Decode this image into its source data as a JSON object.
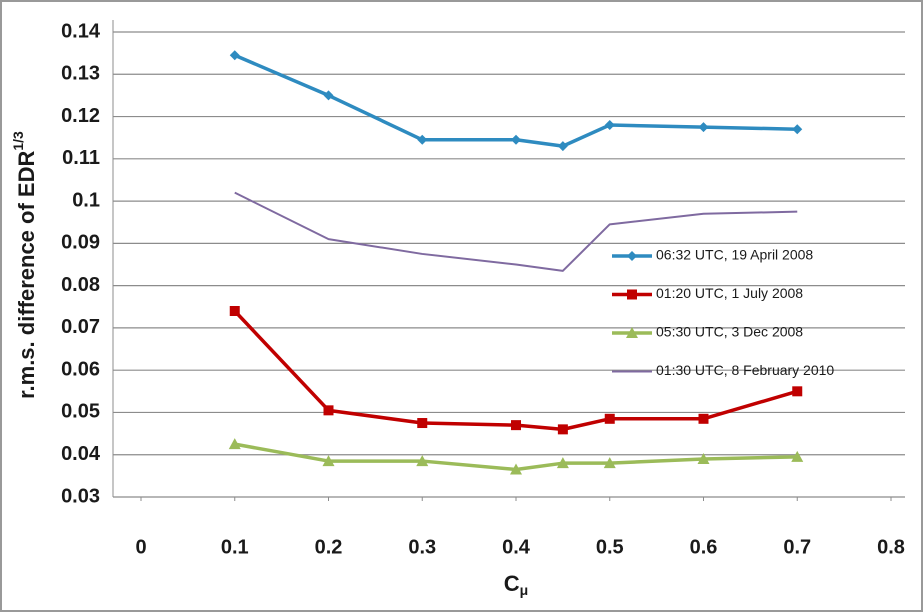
{
  "chart_data": {
    "type": "line",
    "y_label": "r.m.s. difference of EDR",
    "y_label_superscript": "1/3",
    "x_label": "C",
    "x_label_subscript": "μ",
    "x": [
      0.1,
      0.2,
      0.3,
      0.4,
      0.45,
      0.5,
      0.6,
      0.7
    ],
    "series": [
      {
        "name": "06:32 UTC, 19 April 2008",
        "color": "#2e8bc0",
        "marker": "diamond",
        "values": [
          0.1345,
          0.125,
          0.1145,
          0.1145,
          0.113,
          0.118,
          0.1175,
          0.117
        ]
      },
      {
        "name": "01:20 UTC, 1 July 2008",
        "color": "#c00000",
        "marker": "square",
        "values": [
          0.074,
          0.0505,
          0.0475,
          0.047,
          0.046,
          0.0485,
          0.0485,
          0.055
        ]
      },
      {
        "name": "05:30 UTC, 3 Dec 2008",
        "color": "#9bbb59",
        "marker": "triangle",
        "values": [
          0.0425,
          0.0385,
          0.0385,
          0.0365,
          0.038,
          0.038,
          0.039,
          0.0395
        ]
      },
      {
        "name": "01:30 UTC, 8 February 2010",
        "color": "#7f6aa0",
        "marker": "none",
        "values": [
          0.102,
          0.091,
          0.0875,
          0.085,
          0.0835,
          0.0945,
          0.097,
          0.0975
        ]
      }
    ],
    "xlim": [
      0,
      0.8
    ],
    "xticks": [
      0,
      0.1,
      0.2,
      0.3,
      0.4,
      0.5,
      0.6,
      0.7,
      0.8
    ],
    "ylim": [
      0.03,
      0.14
    ],
    "yticks": [
      0.03,
      0.04,
      0.05,
      0.06,
      0.07,
      0.08,
      0.09,
      0.1,
      0.11,
      0.12,
      0.13,
      0.14
    ],
    "grid": true,
    "legend": "right"
  }
}
